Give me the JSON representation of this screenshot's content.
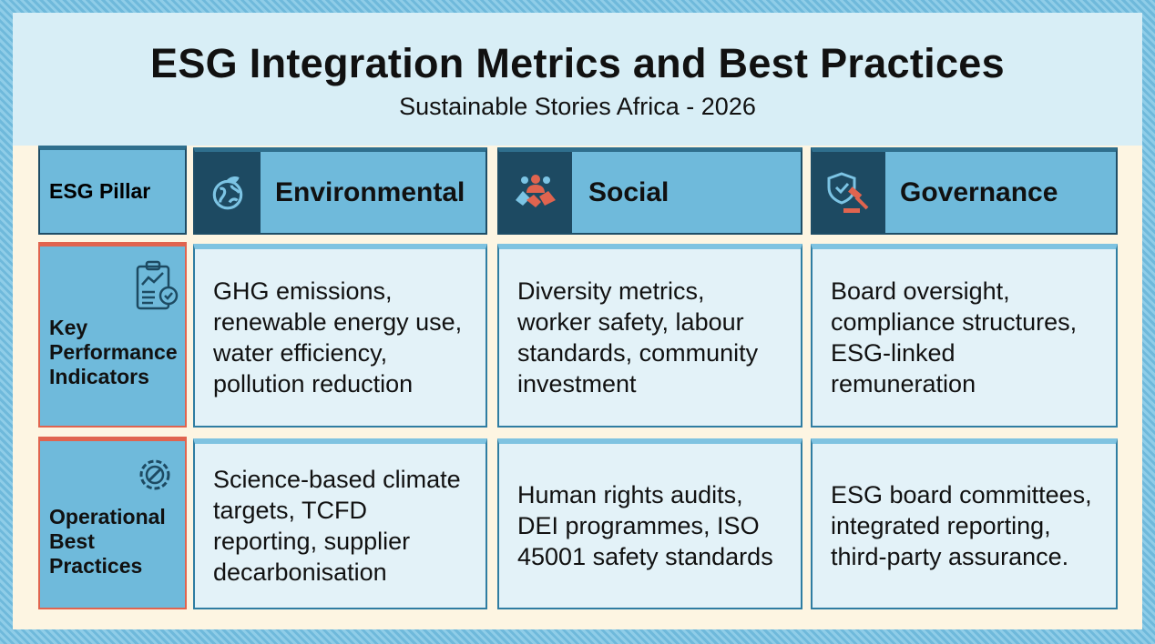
{
  "title": "ESG Integration Metrics and Best Practices",
  "subtitle": "Sustainable Stories Africa - 2026",
  "header": {
    "label": "ESG Pillar",
    "pillars": [
      {
        "name": "Environmental",
        "icon": "globe-leaf-icon"
      },
      {
        "name": "Social",
        "icon": "handshake-people-icon"
      },
      {
        "name": "Governance",
        "icon": "shield-gavel-icon"
      }
    ]
  },
  "rows": [
    {
      "label": "Key Performance Indicators",
      "icon": "clipboard-chart-icon",
      "cells": [
        "GHG emissions, renewable energy use, water efficiency, pollution reduction",
        "Diversity metrics, worker safety, labour standards, community investment",
        "Board oversight, compliance structures, ESG-linked remuneration"
      ]
    },
    {
      "label": "Operational Best Practices",
      "icon": "gear-wrench-icon",
      "cells": [
        "Science-based climate targets, TCFD reporting, supplier decarbonisation",
        "Human rights audits, DEI programmes, ISO 45001 safety standards",
        "ESG board committees, integrated reporting, third-party assurance."
      ]
    }
  ],
  "colors": {
    "accent": "#e0644f",
    "dark": "#1d4a62",
    "header": "#6fbadb",
    "cell": "#e3f2f8"
  }
}
